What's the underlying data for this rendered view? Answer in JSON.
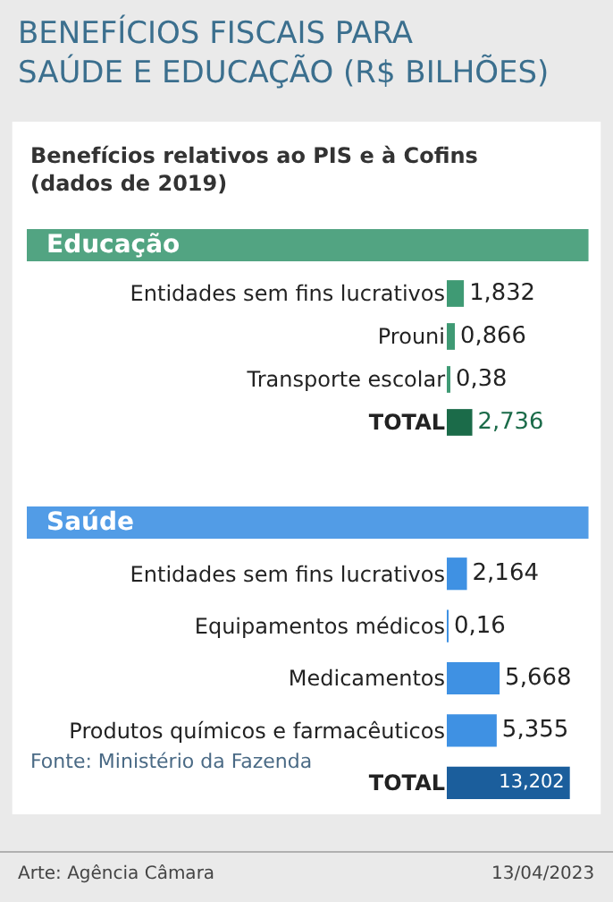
{
  "chart_data": [
    {
      "type": "bar",
      "orientation": "horizontal",
      "title": "BENEFÍCIOS FISCAIS PARA SAÚDE E EDUCAÇÃO (R$ BILHÕES)",
      "subtitle": "Benefícios relativos ao PIS e à Cofins (dados de 2019)",
      "annotations": [
        "Educação"
      ],
      "categories": [
        "Entidades sem fins lucrativos",
        "Prouni",
        "Transporte escolar",
        "TOTAL"
      ],
      "values": [
        1.832,
        0.866,
        0.38,
        2.736
      ],
      "value_labels": [
        "1,832",
        "0,866",
        "0,38",
        "2,736"
      ],
      "colors": [
        "#3f9a74",
        "#3f9a74",
        "#3f9a74",
        "#1b6b49"
      ]
    },
    {
      "type": "bar",
      "orientation": "horizontal",
      "annotations": [
        "Saúde",
        "Fonte: Ministério da Fazenda",
        "Arte: Agência Câmara",
        "13/04/2023"
      ],
      "categories": [
        "Entidades sem fins lucrativos",
        "Equipamentos médicos",
        "Medicamentos",
        "Produtos químicos e farmacêuticos",
        "TOTAL"
      ],
      "values": [
        2.164,
        0.16,
        5.668,
        5.355,
        13.202
      ],
      "value_labels": [
        "2,164",
        "0,16",
        "5,668",
        "5,355",
        "13,202"
      ],
      "colors": [
        "#3f91e3",
        "#3f91e3",
        "#3f91e3",
        "#3f91e3",
        "#1b5e9c"
      ]
    }
  ]
}
